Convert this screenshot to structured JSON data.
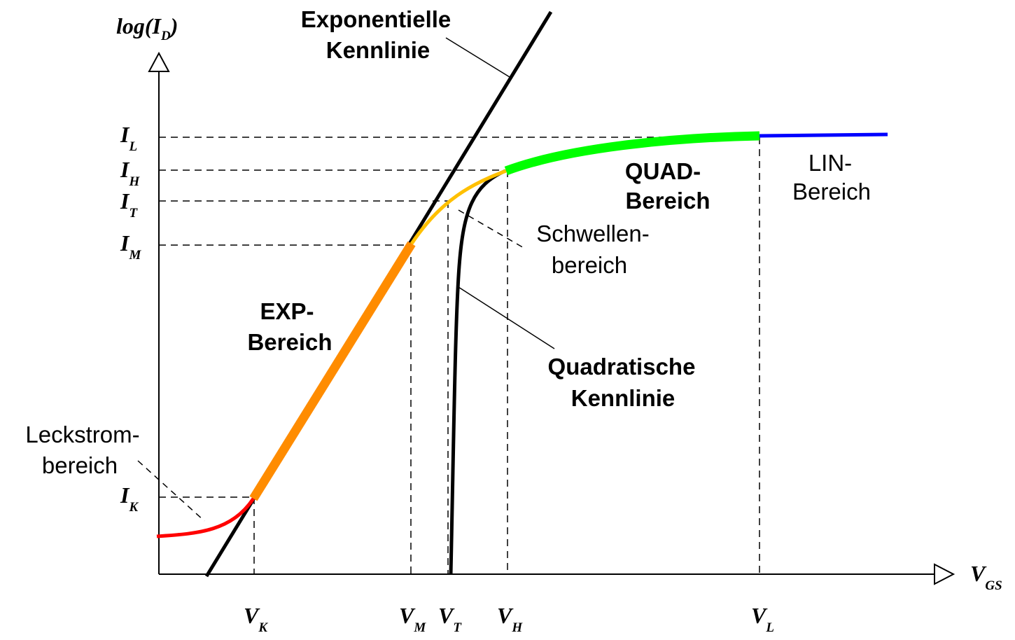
{
  "axes": {
    "y": {
      "symbol": "log(I",
      "sub": "D",
      "close": ")"
    },
    "x": {
      "symbol": "V",
      "sub": "GS"
    }
  },
  "current_levels": [
    {
      "symbol": "I",
      "sub": "L"
    },
    {
      "symbol": "I",
      "sub": "H"
    },
    {
      "symbol": "I",
      "sub": "T"
    },
    {
      "symbol": "I",
      "sub": "M"
    },
    {
      "symbol": "I",
      "sub": "K"
    }
  ],
  "voltage_levels": [
    {
      "symbol": "V",
      "sub": "K"
    },
    {
      "symbol": "V",
      "sub": "M"
    },
    {
      "symbol": "V",
      "sub": "T"
    },
    {
      "symbol": "V",
      "sub": "H"
    },
    {
      "symbol": "V",
      "sub": "L"
    }
  ],
  "labels": {
    "exponential": [
      "Exponentielle",
      "Kennlinie"
    ],
    "quad": [
      "QUAD-",
      "Bereich"
    ],
    "lin": [
      "LIN-",
      "Bereich"
    ],
    "threshold": [
      "Schwellen-",
      "bereich"
    ],
    "exp": [
      "EXP-",
      "Bereich"
    ],
    "quadratic": [
      "Quadratische",
      "Kennlinie"
    ],
    "leakage": [
      "Leckstrom-",
      "bereich"
    ]
  },
  "colors": {
    "axis": "#000000",
    "leakage": "#ff0000",
    "exp": "#ff8c00",
    "threshold": "#ffc000",
    "quad": "#00ff00",
    "lin": "#0000ff"
  }
}
